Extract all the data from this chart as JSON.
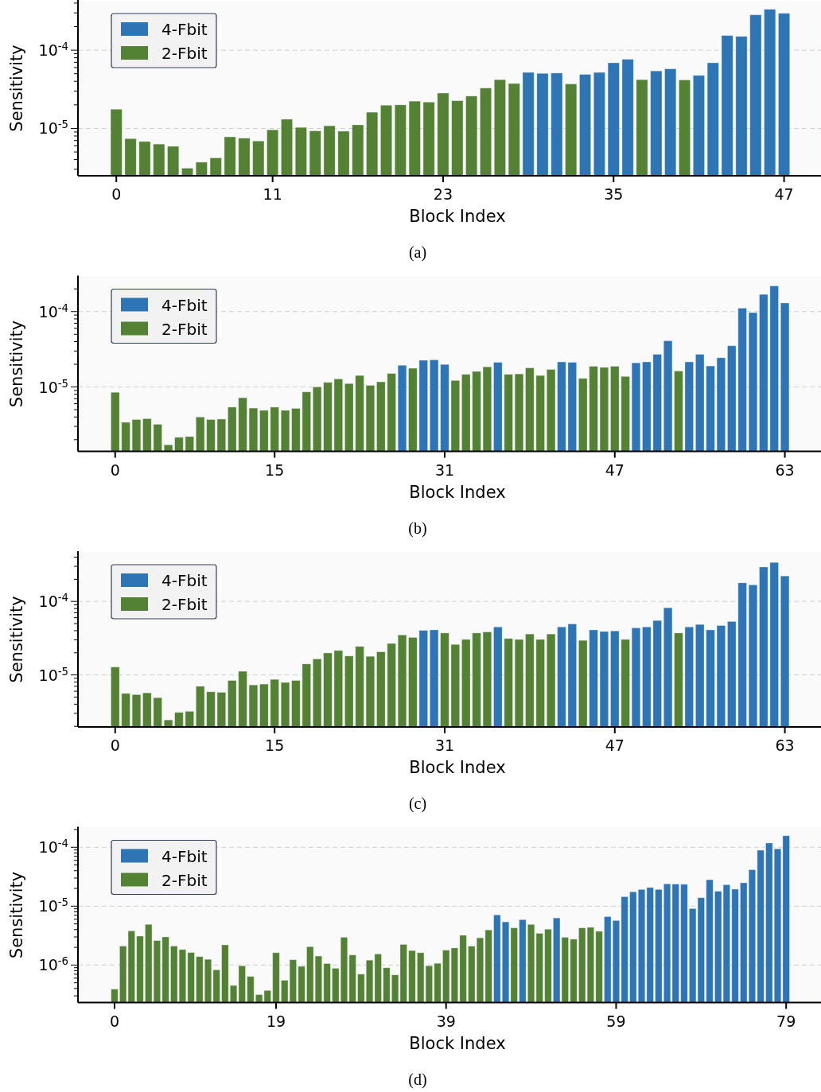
{
  "chart_data": [
    {
      "type": "bar",
      "title": "(a)",
      "xlabel": "Block Index",
      "ylabel": "Sensitivity",
      "log": true,
      "grid": "y",
      "legend": "top left",
      "x": [
        0,
        1,
        2,
        3,
        4,
        5,
        6,
        7,
        8,
        9,
        10,
        11,
        12,
        13,
        14,
        15,
        16,
        17,
        18,
        19,
        20,
        21,
        22,
        23,
        24,
        25,
        26,
        27,
        28,
        29,
        30,
        31,
        32,
        33,
        34,
        35,
        36,
        37,
        38,
        39,
        40,
        41,
        42,
        43,
        44,
        45,
        46,
        47
      ],
      "xlim": [
        -2.7,
        49.6
      ],
      "xticks": [
        0,
        11,
        23,
        35,
        47
      ],
      "ylim": [
        2.48e-06,
        0.000428
      ],
      "yticks": [
        {
          "value": 3e-06,
          "label": null
        },
        {
          "value": 4e-06,
          "label": null
        },
        {
          "value": 5e-06,
          "label": null
        },
        {
          "value": 6e-06,
          "label": null
        },
        {
          "value": 7e-06,
          "label": null
        },
        {
          "value": 8e-06,
          "label": null
        },
        {
          "value": 9e-06,
          "label": null
        },
        {
          "value": 1e-05,
          "label": "10$^{-5}$"
        },
        {
          "value": 2e-05,
          "label": null
        },
        {
          "value": 3e-05,
          "label": null
        },
        {
          "value": 4e-05,
          "label": null
        },
        {
          "value": 5e-05,
          "label": null
        },
        {
          "value": 6e-05,
          "label": null
        },
        {
          "value": 7e-05,
          "label": null
        },
        {
          "value": 8e-05,
          "label": null
        },
        {
          "value": 9e-05,
          "label": null
        },
        {
          "value": 0.0001,
          "label": "10$^{-4}$"
        },
        {
          "value": 0.0002,
          "label": null
        },
        {
          "value": 0.0003,
          "label": null
        },
        {
          "value": 0.0004,
          "label": null
        }
      ],
      "series": [
        {
          "name": "4-Fbit",
          "color": "#2e75b6",
          "values": [
            null,
            null,
            null,
            null,
            null,
            null,
            null,
            null,
            null,
            null,
            null,
            null,
            null,
            null,
            null,
            null,
            null,
            null,
            null,
            null,
            null,
            null,
            null,
            null,
            null,
            null,
            null,
            null,
            null,
            5.2e-05,
            5.05e-05,
            5.1e-05,
            null,
            4.9e-05,
            5.2e-05,
            6.9e-05,
            7.65e-05,
            null,
            5.43e-05,
            5.77e-05,
            null,
            4.76e-05,
            6.9e-05,
            0.000154,
            0.00015,
            0.000283,
            0.000333,
            0.000296
          ]
        },
        {
          "name": "2-Fbit",
          "color": "#548235",
          "values": [
            1.76e-05,
            7.4e-06,
            6.8e-06,
            6.3e-06,
            5.9e-06,
            3.1e-06,
            3.7e-06,
            4.2e-06,
            7.8e-06,
            7.5e-06,
            6.9e-06,
            9.6e-06,
            1.31e-05,
            1.03e-05,
            9.3e-06,
            1.08e-05,
            9.2e-06,
            1.11e-05,
            1.61e-05,
            1.98e-05,
            2e-05,
            2.23e-05,
            2.17e-05,
            2.83e-05,
            2.26e-05,
            2.59e-05,
            3.28e-05,
            4.2e-05,
            3.75e-05,
            null,
            null,
            null,
            3.7e-05,
            null,
            null,
            null,
            null,
            4.2e-05,
            null,
            null,
            4.16e-05,
            null,
            null,
            null,
            null,
            null,
            null,
            null
          ]
        }
      ]
    },
    {
      "type": "bar",
      "title": "(b)",
      "xlabel": "Block Index",
      "ylabel": "Sensitivity",
      "log": true,
      "grid": "y",
      "legend": "top left",
      "x": [
        0,
        1,
        2,
        3,
        4,
        5,
        6,
        7,
        8,
        9,
        10,
        11,
        12,
        13,
        14,
        15,
        16,
        17,
        18,
        19,
        20,
        21,
        22,
        23,
        24,
        25,
        26,
        27,
        28,
        29,
        30,
        31,
        32,
        33,
        34,
        35,
        36,
        37,
        38,
        39,
        40,
        41,
        42,
        43,
        44,
        45,
        46,
        47,
        48,
        49,
        50,
        51,
        52,
        53,
        54,
        55,
        56,
        57,
        58,
        59,
        60,
        61,
        62,
        63
      ],
      "xlim": [
        -3.5,
        66.4
      ],
      "xticks": [
        0,
        15,
        31,
        47,
        63
      ],
      "ylim": [
        1.4e-06,
        0.000293
      ],
      "yticks": [
        {
          "value": 2e-06,
          "label": null
        },
        {
          "value": 3e-06,
          "label": null
        },
        {
          "value": 4e-06,
          "label": null
        },
        {
          "value": 5e-06,
          "label": null
        },
        {
          "value": 6e-06,
          "label": null
        },
        {
          "value": 7e-06,
          "label": null
        },
        {
          "value": 8e-06,
          "label": null
        },
        {
          "value": 9e-06,
          "label": null
        },
        {
          "value": 1e-05,
          "label": "10$^{-5}$"
        },
        {
          "value": 2e-05,
          "label": null
        },
        {
          "value": 3e-05,
          "label": null
        },
        {
          "value": 4e-05,
          "label": null
        },
        {
          "value": 5e-05,
          "label": null
        },
        {
          "value": 6e-05,
          "label": null
        },
        {
          "value": 7e-05,
          "label": null
        },
        {
          "value": 8e-05,
          "label": null
        },
        {
          "value": 9e-05,
          "label": null
        },
        {
          "value": 0.0001,
          "label": "10$^{-4}$"
        },
        {
          "value": 0.0002,
          "label": null
        }
      ],
      "series": [
        {
          "name": "4-Fbit",
          "color": "#2e75b6",
          "values": [
            null,
            null,
            null,
            null,
            null,
            null,
            null,
            null,
            null,
            null,
            null,
            null,
            null,
            null,
            null,
            null,
            null,
            null,
            null,
            null,
            null,
            null,
            null,
            null,
            null,
            null,
            null,
            1.94e-05,
            null,
            2.26e-05,
            2.29e-05,
            1.99e-05,
            null,
            null,
            null,
            null,
            2.12e-05,
            null,
            null,
            null,
            null,
            null,
            2.15e-05,
            2.12e-05,
            null,
            null,
            null,
            null,
            null,
            2.09e-05,
            2.15e-05,
            2.71e-05,
            4.1e-05,
            null,
            2.15e-05,
            2.71e-05,
            1.9e-05,
            2.44e-05,
            3.52e-05,
            0.000111,
            9.7e-05,
            0.000169,
            0.000219,
            0.00013
          ]
        },
        {
          "name": "2-Fbit",
          "color": "#548235",
          "values": [
            8.5e-06,
            3.4e-06,
            3.7e-06,
            3.8e-06,
            3.2e-06,
            1.71e-06,
            2.15e-06,
            2.2e-06,
            4e-06,
            3.7e-06,
            3.75e-06,
            5.4e-06,
            7.2e-06,
            5.25e-06,
            4.9e-06,
            5.4e-06,
            4.9e-06,
            5.2e-06,
            8.6e-06,
            1e-05,
            1.15e-05,
            1.28e-05,
            1.11e-05,
            1.42e-05,
            1.05e-05,
            1.17e-05,
            1.51e-05,
            null,
            1.77e-05,
            null,
            null,
            null,
            1.22e-05,
            1.47e-05,
            1.61e-05,
            1.85e-05,
            null,
            1.47e-05,
            1.49e-05,
            1.79e-05,
            1.42e-05,
            1.71e-05,
            null,
            null,
            1.3e-05,
            1.88e-05,
            1.82e-05,
            1.88e-05,
            1.38e-05,
            null,
            null,
            null,
            null,
            1.63e-05,
            null,
            null,
            null,
            null,
            null,
            null,
            null,
            null,
            null,
            null
          ]
        }
      ]
    },
    {
      "type": "bar",
      "title": "(c)",
      "xlabel": "Block Index",
      "ylabel": "Sensitivity",
      "log": true,
      "grid": "y",
      "legend": "top left",
      "x": [
        0,
        1,
        2,
        3,
        4,
        5,
        6,
        7,
        8,
        9,
        10,
        11,
        12,
        13,
        14,
        15,
        16,
        17,
        18,
        19,
        20,
        21,
        22,
        23,
        24,
        25,
        26,
        27,
        28,
        29,
        30,
        31,
        32,
        33,
        34,
        35,
        36,
        37,
        38,
        39,
        40,
        41,
        42,
        43,
        44,
        45,
        46,
        47,
        48,
        49,
        50,
        51,
        52,
        53,
        54,
        55,
        56,
        57,
        58,
        59,
        60,
        61,
        62,
        63
      ],
      "xlim": [
        -3.5,
        66.4
      ],
      "xticks": [
        0,
        15,
        31,
        47,
        63
      ],
      "ylim": [
        1.96e-06,
        0.000471
      ],
      "yticks": [
        {
          "value": 2e-06,
          "label": null
        },
        {
          "value": 3e-06,
          "label": null
        },
        {
          "value": 4e-06,
          "label": null
        },
        {
          "value": 5e-06,
          "label": null
        },
        {
          "value": 6e-06,
          "label": null
        },
        {
          "value": 7e-06,
          "label": null
        },
        {
          "value": 8e-06,
          "label": null
        },
        {
          "value": 9e-06,
          "label": null
        },
        {
          "value": 1e-05,
          "label": "10$^{-5}$"
        },
        {
          "value": 2e-05,
          "label": null
        },
        {
          "value": 3e-05,
          "label": null
        },
        {
          "value": 4e-05,
          "label": null
        },
        {
          "value": 5e-05,
          "label": null
        },
        {
          "value": 6e-05,
          "label": null
        },
        {
          "value": 7e-05,
          "label": null
        },
        {
          "value": 8e-05,
          "label": null
        },
        {
          "value": 9e-05,
          "label": null
        },
        {
          "value": 0.0001,
          "label": "10$^{-4}$"
        },
        {
          "value": 0.0002,
          "label": null
        },
        {
          "value": 0.0003,
          "label": null
        },
        {
          "value": 0.0004,
          "label": null
        }
      ],
      "series": [
        {
          "name": "4-Fbit",
          "color": "#2e75b6",
          "values": [
            null,
            null,
            null,
            null,
            null,
            null,
            null,
            null,
            null,
            null,
            null,
            null,
            null,
            null,
            null,
            null,
            null,
            null,
            null,
            null,
            null,
            null,
            null,
            null,
            null,
            null,
            null,
            null,
            null,
            4.03e-05,
            4.1e-05,
            null,
            null,
            null,
            null,
            null,
            4.5e-05,
            null,
            null,
            null,
            null,
            null,
            4.5e-05,
            4.94e-05,
            null,
            4.1e-05,
            3.9e-05,
            3.97e-05,
            null,
            4.37e-05,
            4.5e-05,
            5.5e-05,
            8.2e-05,
            null,
            4.5e-05,
            4.86e-05,
            4.1e-05,
            4.7e-05,
            5.34e-05,
            0.000179,
            0.000168,
            0.000294,
            0.000339,
            0.000222
          ]
        },
        {
          "name": "2-Fbit",
          "color": "#548235",
          "values": [
            1.28e-05,
            5.6e-06,
            5.4e-06,
            5.7e-06,
            4.9e-06,
            2.44e-06,
            3.09e-06,
            3.2e-06,
            7e-06,
            5.9e-06,
            5.8e-06,
            8.4e-06,
            1.12e-05,
            7.3e-06,
            7.5e-06,
            8.7e-06,
            7.9e-06,
            8.4e-06,
            1.41e-05,
            1.65e-05,
            1.99e-05,
            2.15e-05,
            1.81e-05,
            2.44e-05,
            1.79e-05,
            2.06e-05,
            2.68e-05,
            3.5e-05,
            3.24e-05,
            null,
            null,
            3.72e-05,
            2.6e-05,
            3.04e-05,
            3.72e-05,
            3.84e-05,
            null,
            3.13e-05,
            3.04e-05,
            3.6e-05,
            3.04e-05,
            3.6e-05,
            null,
            null,
            2.95e-05,
            null,
            null,
            null,
            3.04e-05,
            null,
            null,
            null,
            null,
            3.72e-05,
            null,
            null,
            null,
            null,
            null,
            null,
            null,
            null,
            null,
            null
          ]
        }
      ]
    },
    {
      "type": "bar",
      "title": "(d)",
      "xlabel": "Block Index",
      "ylabel": "Sensitivity",
      "log": true,
      "grid": "y",
      "legend": "top left",
      "x": [
        0,
        1,
        2,
        3,
        4,
        5,
        6,
        7,
        8,
        9,
        10,
        11,
        12,
        13,
        14,
        15,
        16,
        17,
        18,
        19,
        20,
        21,
        22,
        23,
        24,
        25,
        26,
        27,
        28,
        29,
        30,
        31,
        32,
        33,
        34,
        35,
        36,
        37,
        38,
        39,
        40,
        41,
        42,
        43,
        44,
        45,
        46,
        47,
        48,
        49,
        50,
        51,
        52,
        53,
        54,
        55,
        56,
        57,
        58,
        59,
        60,
        61,
        62,
        63,
        64,
        65,
        66,
        67,
        68,
        69,
        70,
        71,
        72,
        73,
        74,
        75,
        76,
        77,
        78,
        79
      ],
      "xlim": [
        -4.3,
        83.1
      ],
      "xticks": [
        0,
        19,
        39,
        59,
        79
      ],
      "ylim": [
        2.31e-07,
        0.000216
      ],
      "yticks": [
        {
          "value": 3e-07,
          "label": null
        },
        {
          "value": 4e-07,
          "label": null
        },
        {
          "value": 5e-07,
          "label": null
        },
        {
          "value": 6e-07,
          "label": null
        },
        {
          "value": 7e-07,
          "label": null
        },
        {
          "value": 8e-07,
          "label": null
        },
        {
          "value": 9e-07,
          "label": null
        },
        {
          "value": 1e-06,
          "label": "10$^{-6}$"
        },
        {
          "value": 2e-06,
          "label": null
        },
        {
          "value": 3e-06,
          "label": null
        },
        {
          "value": 4e-06,
          "label": null
        },
        {
          "value": 5e-06,
          "label": null
        },
        {
          "value": 6e-06,
          "label": null
        },
        {
          "value": 7e-06,
          "label": null
        },
        {
          "value": 8e-06,
          "label": null
        },
        {
          "value": 9e-06,
          "label": null
        },
        {
          "value": 1e-05,
          "label": "10$^{-5}$"
        },
        {
          "value": 2e-05,
          "label": null
        },
        {
          "value": 3e-05,
          "label": null
        },
        {
          "value": 4e-05,
          "label": null
        },
        {
          "value": 5e-05,
          "label": null
        },
        {
          "value": 6e-05,
          "label": null
        },
        {
          "value": 7e-05,
          "label": null
        },
        {
          "value": 8e-05,
          "label": null
        },
        {
          "value": 9e-05,
          "label": null
        },
        {
          "value": 0.0001,
          "label": "10$^{-4}$"
        },
        {
          "value": 0.0002,
          "label": null
        }
      ],
      "series": [
        {
          "name": "4-Fbit",
          "color": "#2e75b6",
          "values": [
            null,
            null,
            null,
            null,
            null,
            null,
            null,
            null,
            null,
            null,
            null,
            null,
            null,
            null,
            null,
            null,
            null,
            null,
            null,
            null,
            null,
            null,
            null,
            null,
            null,
            null,
            null,
            null,
            null,
            null,
            null,
            null,
            null,
            null,
            null,
            null,
            null,
            null,
            null,
            null,
            null,
            null,
            null,
            null,
            null,
            7.1e-06,
            5.4e-06,
            null,
            5.9e-06,
            null,
            null,
            null,
            6.3e-06,
            null,
            null,
            null,
            null,
            null,
            6.64e-06,
            5.7e-06,
            1.45e-05,
            1.75e-05,
            1.92e-05,
            2.07e-05,
            1.92e-05,
            2.39e-05,
            2.37e-05,
            2.35e-05,
            9.1e-06,
            1.39e-05,
            2.81e-05,
            1.79e-05,
            2.31e-05,
            1.94e-05,
            2.49e-05,
            4.15e-05,
            8.9e-05,
            0.000118,
            9.4e-05,
            0.000157
          ]
        },
        {
          "name": "2-Fbit",
          "color": "#548235",
          "values": [
            3.9e-07,
            2.1e-06,
            3.8e-06,
            3.1e-06,
            4.9e-06,
            2.6e-06,
            3e-06,
            2.1e-06,
            1.83e-06,
            1.63e-06,
            1.39e-06,
            1.25e-06,
            8.3e-07,
            2.2e-06,
            4.5e-07,
            9.7e-07,
            6.4e-07,
            3.15e-07,
            3.7e-07,
            1.62e-06,
            5.5e-07,
            1.23e-06,
            9.5e-07,
            2.05e-06,
            1.42e-06,
            1.06e-06,
            8.8e-07,
            2.96e-06,
            1.48e-06,
            7e-07,
            1.21e-06,
            1.54e-06,
            9e-07,
            6.8e-07,
            2.24e-06,
            1.76e-06,
            1.62e-06,
            9.7e-07,
            1.07e-06,
            1.79e-06,
            1.95e-06,
            3.2e-06,
            2.09e-06,
            2.9e-06,
            3.94e-06,
            null,
            null,
            4.27e-06,
            null,
            4.9e-06,
            3.45e-06,
            4.06e-06,
            null,
            2.96e-06,
            2.75e-06,
            4.27e-06,
            4.37e-06,
            3.74e-06,
            null,
            null,
            null,
            null,
            null,
            null,
            null,
            null,
            null,
            null,
            null,
            null,
            null,
            null,
            null,
            null,
            null,
            null,
            null,
            null,
            null,
            null
          ]
        }
      ]
    }
  ]
}
